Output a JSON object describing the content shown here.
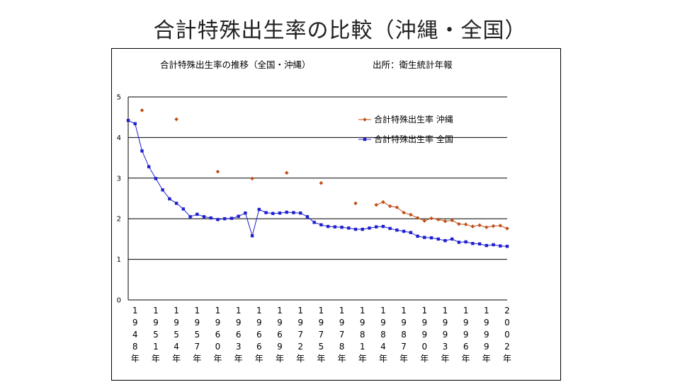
{
  "slide": {
    "title": "合計特殊出生率の比較（沖縄・全国）"
  },
  "chart_data": {
    "type": "line",
    "title": "合計特殊出生率の推移（全国・沖縄）",
    "source": "出所：衛生統計年報",
    "xlabel": "",
    "ylabel": "",
    "ylim": [
      0,
      5
    ],
    "yticks": [
      "0",
      "1",
      "2",
      "3",
      "4",
      "5"
    ],
    "xlim": [
      1947,
      2002
    ],
    "x_tick_labels": [
      "1948年",
      "1951年",
      "1954年",
      "1957年",
      "1960年",
      "1963年",
      "1966年",
      "1969年",
      "1972年",
      "1975年",
      "1978年",
      "1981年",
      "1984年",
      "1987年",
      "1990年",
      "1993年",
      "1996年",
      "1999年",
      "2002年"
    ],
    "grid": "horizontal",
    "legend_position": "top-right",
    "series": [
      {
        "name": "合計特殊出生率 沖縄",
        "color": "#c0501a",
        "marker": "diamond",
        "style": "line-with-gaps",
        "points": [
          [
            1949,
            4.67
          ],
          [
            1954,
            4.45
          ],
          [
            1960,
            3.16
          ],
          [
            1965,
            2.99
          ],
          [
            1970,
            3.13
          ],
          [
            1975,
            2.88
          ],
          [
            1980,
            2.38
          ],
          [
            1983,
            2.34
          ],
          [
            1984,
            2.41
          ],
          [
            1985,
            2.31
          ],
          [
            1986,
            2.28
          ],
          [
            1987,
            2.15
          ],
          [
            1988,
            2.1
          ],
          [
            1989,
            2.02
          ],
          [
            1990,
            1.95
          ],
          [
            1991,
            2.01
          ],
          [
            1992,
            1.98
          ],
          [
            1993,
            1.94
          ],
          [
            1994,
            1.96
          ],
          [
            1995,
            1.87
          ],
          [
            1996,
            1.86
          ],
          [
            1997,
            1.81
          ],
          [
            1998,
            1.84
          ],
          [
            1999,
            1.79
          ],
          [
            2000,
            1.82
          ],
          [
            2001,
            1.83
          ],
          [
            2002,
            1.76
          ]
        ]
      },
      {
        "name": "合計特殊出生率 全国",
        "color": "#1f1fd1",
        "marker": "square",
        "style": "line",
        "points": [
          [
            1947,
            4.42
          ],
          [
            1948,
            4.34
          ],
          [
            1949,
            3.67
          ],
          [
            1950,
            3.28
          ],
          [
            1951,
            2.99
          ],
          [
            1952,
            2.71
          ],
          [
            1953,
            2.49
          ],
          [
            1954,
            2.38
          ],
          [
            1955,
            2.24
          ],
          [
            1956,
            2.05
          ],
          [
            1957,
            2.11
          ],
          [
            1958,
            2.05
          ],
          [
            1959,
            2.02
          ],
          [
            1960,
            1.98
          ],
          [
            1961,
            2.0
          ],
          [
            1962,
            2.01
          ],
          [
            1963,
            2.06
          ],
          [
            1964,
            2.14
          ],
          [
            1965,
            1.58
          ],
          [
            1966,
            2.23
          ],
          [
            1967,
            2.15
          ],
          [
            1968,
            2.13
          ],
          [
            1969,
            2.14
          ],
          [
            1970,
            2.16
          ],
          [
            1971,
            2.15
          ],
          [
            1972,
            2.14
          ],
          [
            1973,
            2.05
          ],
          [
            1974,
            1.91
          ],
          [
            1975,
            1.85
          ],
          [
            1976,
            1.81
          ],
          [
            1977,
            1.8
          ],
          [
            1978,
            1.79
          ],
          [
            1979,
            1.77
          ],
          [
            1980,
            1.74
          ],
          [
            1981,
            1.74
          ],
          [
            1982,
            1.77
          ],
          [
            1983,
            1.8
          ],
          [
            1984,
            1.81
          ],
          [
            1985,
            1.76
          ],
          [
            1986,
            1.72
          ],
          [
            1987,
            1.69
          ],
          [
            1988,
            1.66
          ],
          [
            1989,
            1.57
          ],
          [
            1990,
            1.54
          ],
          [
            1991,
            1.53
          ],
          [
            1992,
            1.5
          ],
          [
            1993,
            1.46
          ],
          [
            1994,
            1.5
          ],
          [
            1995,
            1.42
          ],
          [
            1996,
            1.43
          ],
          [
            1997,
            1.39
          ],
          [
            1998,
            1.38
          ],
          [
            1999,
            1.34
          ],
          [
            2000,
            1.36
          ],
          [
            2001,
            1.33
          ],
          [
            2002,
            1.32
          ]
        ]
      }
    ]
  }
}
